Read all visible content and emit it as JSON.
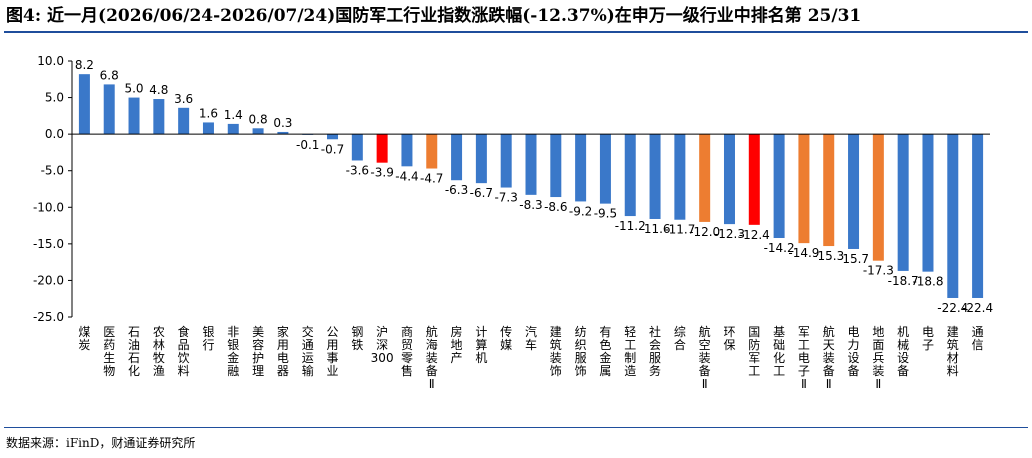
{
  "title": "图4: 近一月(2026/06/24-2026/07/24)国防军工行业指数涨跌幅(-12.37%)在申万一级行业中排名第 25/31",
  "source": "数据来源：iFinD，财通证券研究所",
  "colors": {
    "default": "#3a78c9",
    "highlight_red": "#ff0000",
    "highlight_orange": "#ed7d31",
    "frame": "#1f4e9c"
  },
  "chart_data": {
    "type": "bar",
    "title": "",
    "xlabel": "",
    "ylabel": "",
    "ylim": [
      -25.0,
      10.0
    ],
    "yticks": [
      "10.0",
      "5.0",
      "0.0",
      "-5.0",
      "-10.0",
      "-15.0",
      "-20.0",
      "-25.0"
    ],
    "grid": false,
    "legend": "none",
    "categories": [
      "煤炭",
      "医药生物",
      "石油石化",
      "农林牧渔",
      "食品饮料",
      "银行",
      "非银金融",
      "美容护理",
      "家用电器",
      "交通运输",
      "公用事业",
      "钢铁",
      "沪深300",
      "商贸零售",
      "航海装备Ⅱ",
      "房地产",
      "计算机",
      "传媒",
      "汽车",
      "建筑装饰",
      "纺织服饰",
      "有色金属",
      "轻工制造",
      "社会服务",
      "综合",
      "航空装备Ⅱ",
      "环保",
      "国防军工",
      "基础化工",
      "军工电子Ⅱ",
      "航天装备Ⅱ",
      "电力设备",
      "地面兵装Ⅱ",
      "机械设备",
      "电子",
      "建筑材料",
      "通信"
    ],
    "values": [
      8.2,
      6.8,
      5.0,
      4.8,
      3.6,
      1.6,
      1.4,
      0.8,
      0.3,
      -0.1,
      -0.7,
      -3.6,
      -3.9,
      -4.4,
      -4.7,
      -6.3,
      -6.7,
      -7.3,
      -8.3,
      -8.6,
      -9.2,
      -9.5,
      -11.2,
      -11.6,
      -11.7,
      -12.0,
      -12.3,
      -12.4,
      -14.2,
      -14.9,
      -15.3,
      -15.7,
      -17.3,
      -18.7,
      -18.8,
      -22.4,
      -22.4
    ],
    "value_labels": [
      "8.2",
      "6.8",
      "5.0",
      "4.8",
      "3.6",
      "1.6",
      "1.4",
      "0.8",
      "0.3",
      "-0.1",
      "-0.7",
      "-3.6",
      "-3.9",
      "-4.4",
      "-4.7",
      "-6.3",
      "-6.7",
      "-7.3",
      "-8.3",
      "-8.6",
      "-9.2",
      "-9.5",
      "-11.2",
      "-11.6",
      "-11.7",
      "-12.0",
      "-12.3",
      "-12.4",
      "-14.2",
      "-14.9",
      "-15.3",
      "-15.7",
      "-17.3",
      "-18.7",
      "-18.8",
      "-22.4",
      "-22.4"
    ],
    "bar_colors": [
      "#3a78c9",
      "#3a78c9",
      "#3a78c9",
      "#3a78c9",
      "#3a78c9",
      "#3a78c9",
      "#3a78c9",
      "#3a78c9",
      "#3a78c9",
      "#3a78c9",
      "#3a78c9",
      "#3a78c9",
      "#ff0000",
      "#3a78c9",
      "#ed7d31",
      "#3a78c9",
      "#3a78c9",
      "#3a78c9",
      "#3a78c9",
      "#3a78c9",
      "#3a78c9",
      "#3a78c9",
      "#3a78c9",
      "#3a78c9",
      "#3a78c9",
      "#ed7d31",
      "#3a78c9",
      "#ff0000",
      "#3a78c9",
      "#ed7d31",
      "#ed7d31",
      "#3a78c9",
      "#ed7d31",
      "#3a78c9",
      "#3a78c9",
      "#3a78c9",
      "#3a78c9"
    ]
  }
}
